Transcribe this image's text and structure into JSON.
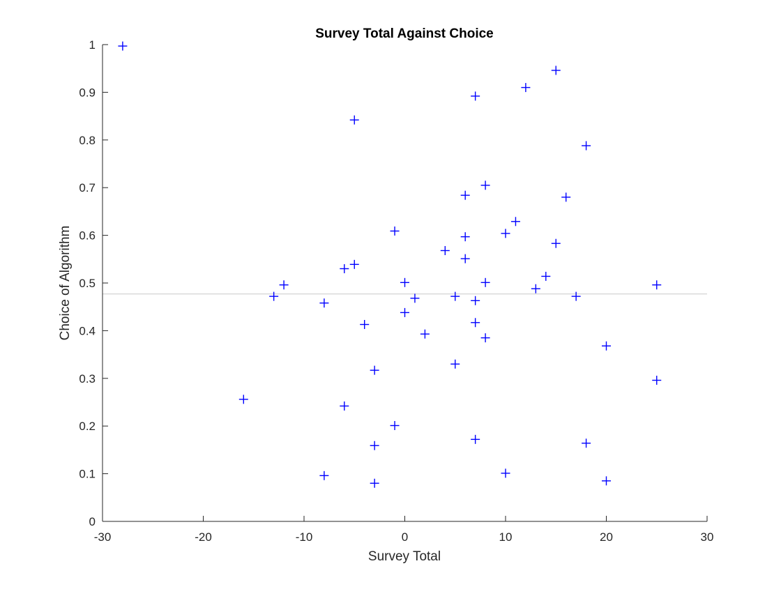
{
  "chart_data": {
    "type": "scatter",
    "title": "Survey Total Against Choice",
    "xlabel": "Survey Total",
    "ylabel": "Choice of Algorithm",
    "xlim": [
      -30,
      30
    ],
    "ylim": [
      0,
      1
    ],
    "xticks": [
      "-30",
      "-20",
      "-10",
      "0",
      "10",
      "20",
      "30"
    ],
    "yticks": [
      "0",
      "0.1",
      "0.2",
      "0.3",
      "0.4",
      "0.5",
      "0.6",
      "0.7",
      "0.8",
      "0.9",
      "1"
    ],
    "grid": false,
    "marker": "+",
    "marker_color": "#0000ff",
    "reference_line": {
      "y": 0.477,
      "color": "#c8c8c8"
    },
    "points": [
      {
        "x": -28,
        "y": 0.997
      },
      {
        "x": 15,
        "y": 0.946
      },
      {
        "x": 12,
        "y": 0.91
      },
      {
        "x": 7,
        "y": 0.892
      },
      {
        "x": -5,
        "y": 0.842
      },
      {
        "x": 18,
        "y": 0.788
      },
      {
        "x": 8,
        "y": 0.705
      },
      {
        "x": 6,
        "y": 0.684
      },
      {
        "x": 16,
        "y": 0.68
      },
      {
        "x": 11,
        "y": 0.629
      },
      {
        "x": -1,
        "y": 0.609
      },
      {
        "x": 10,
        "y": 0.604
      },
      {
        "x": 6,
        "y": 0.597
      },
      {
        "x": 15,
        "y": 0.583
      },
      {
        "x": 4,
        "y": 0.568
      },
      {
        "x": 6,
        "y": 0.551
      },
      {
        "x": -5,
        "y": 0.539
      },
      {
        "x": -6,
        "y": 0.53
      },
      {
        "x": 14,
        "y": 0.514
      },
      {
        "x": 0,
        "y": 0.501
      },
      {
        "x": 8,
        "y": 0.501
      },
      {
        "x": -12,
        "y": 0.496
      },
      {
        "x": 25,
        "y": 0.496
      },
      {
        "x": 13,
        "y": 0.488
      },
      {
        "x": -13,
        "y": 0.472
      },
      {
        "x": 5,
        "y": 0.472
      },
      {
        "x": 17,
        "y": 0.472
      },
      {
        "x": 1,
        "y": 0.468
      },
      {
        "x": 7,
        "y": 0.463
      },
      {
        "x": -8,
        "y": 0.458
      },
      {
        "x": 0,
        "y": 0.438
      },
      {
        "x": 7,
        "y": 0.417
      },
      {
        "x": -4,
        "y": 0.413
      },
      {
        "x": 2,
        "y": 0.393
      },
      {
        "x": 8,
        "y": 0.385
      },
      {
        "x": 20,
        "y": 0.368
      },
      {
        "x": 5,
        "y": 0.33
      },
      {
        "x": -3,
        "y": 0.317
      },
      {
        "x": 25,
        "y": 0.296
      },
      {
        "x": -16,
        "y": 0.256
      },
      {
        "x": -6,
        "y": 0.242
      },
      {
        "x": -1,
        "y": 0.201
      },
      {
        "x": 7,
        "y": 0.172
      },
      {
        "x": 18,
        "y": 0.164
      },
      {
        "x": -3,
        "y": 0.159
      },
      {
        "x": 10,
        "y": 0.101
      },
      {
        "x": -8,
        "y": 0.096
      },
      {
        "x": 20,
        "y": 0.085
      },
      {
        "x": -3,
        "y": 0.08
      }
    ]
  }
}
